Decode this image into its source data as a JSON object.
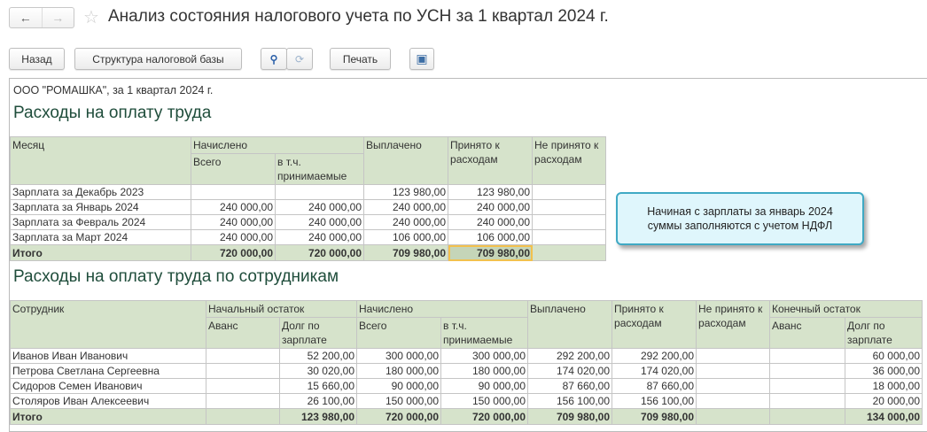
{
  "window": {
    "title": "Анализ состояния налогового учета по УСН за 1 квартал 2024 г."
  },
  "toolbar": {
    "back": "Назад",
    "structure": "Структура налоговой базы",
    "print": "Печать"
  },
  "report": {
    "org_line": "ООО \"РОМАШКА\",  за 1 квартал 2024 г.",
    "section1_title": "Расходы на оплату труда",
    "section2_title": "Расходы на оплату труда по сотрудникам",
    "note": "Начиная с зарплаты за январь 2024\nсуммы заполняются с учетом НДФЛ",
    "table1": {
      "headers": {
        "month": "Месяц",
        "accrued": "Начислено",
        "total": "Всего",
        "accepted_part": "в т.ч. принимаемые",
        "paid": "Выплачено",
        "accepted": "Принято к расходам",
        "not_accepted": "Не принято к расходам"
      },
      "rows": [
        [
          "Зарплата за Декабрь 2023",
          "",
          "",
          "123 980,00",
          "123 980,00",
          ""
        ],
        [
          "Зарплата за Январь 2024",
          "240 000,00",
          "240 000,00",
          "240 000,00",
          "240 000,00",
          ""
        ],
        [
          "Зарплата за Февраль 2024",
          "240 000,00",
          "240 000,00",
          "240 000,00",
          "240 000,00",
          ""
        ],
        [
          "Зарплата за Март 2024",
          "240 000,00",
          "240 000,00",
          "106 000,00",
          "106 000,00",
          ""
        ]
      ],
      "total": [
        "Итого",
        "720 000,00",
        "720 000,00",
        "709 980,00",
        "709 980,00",
        ""
      ]
    },
    "table2": {
      "headers": {
        "employee": "Сотрудник",
        "opening": "Начальный остаток",
        "advance": "Аванс",
        "debt": "Долг по зарплате",
        "accrued": "Начислено",
        "total": "Всего",
        "accepted_part": "в т.ч. принимаемые",
        "paid": "Выплачено",
        "accepted": "Принято к расходам",
        "not_accepted": "Не принято к расходам",
        "closing": "Конечный остаток",
        "advance2": "Аванс",
        "debt2": "Долг по зарплате"
      },
      "rows": [
        [
          "Иванов Иван Иванович",
          "",
          "52 200,00",
          "300 000,00",
          "300 000,00",
          "292 200,00",
          "292 200,00",
          "",
          "",
          "60 000,00"
        ],
        [
          "Петрова Светлана Сергеевна",
          "",
          "30 020,00",
          "180 000,00",
          "180 000,00",
          "174 020,00",
          "174 020,00",
          "",
          "",
          "36 000,00"
        ],
        [
          "Сидоров Семен Иванович",
          "",
          "15 660,00",
          "90 000,00",
          "90 000,00",
          "87 660,00",
          "87 660,00",
          "",
          "",
          "18 000,00"
        ],
        [
          "Столяров Иван Алексеевич",
          "",
          "26 100,00",
          "150 000,00",
          "150 000,00",
          "156 100,00",
          "156 100,00",
          "",
          "",
          "20 000,00"
        ]
      ],
      "total": [
        "Итого",
        "",
        "123 980,00",
        "720 000,00",
        "720 000,00",
        "709 980,00",
        "709 980,00",
        "",
        "",
        "134 000,00"
      ]
    }
  },
  "colors": {
    "header_bg": "#d6e3cb",
    "title_green": "#1f4d3b",
    "highlight": "#f2c14e",
    "note_bg": "#dff6fc",
    "note_border": "#3fa9c4"
  }
}
